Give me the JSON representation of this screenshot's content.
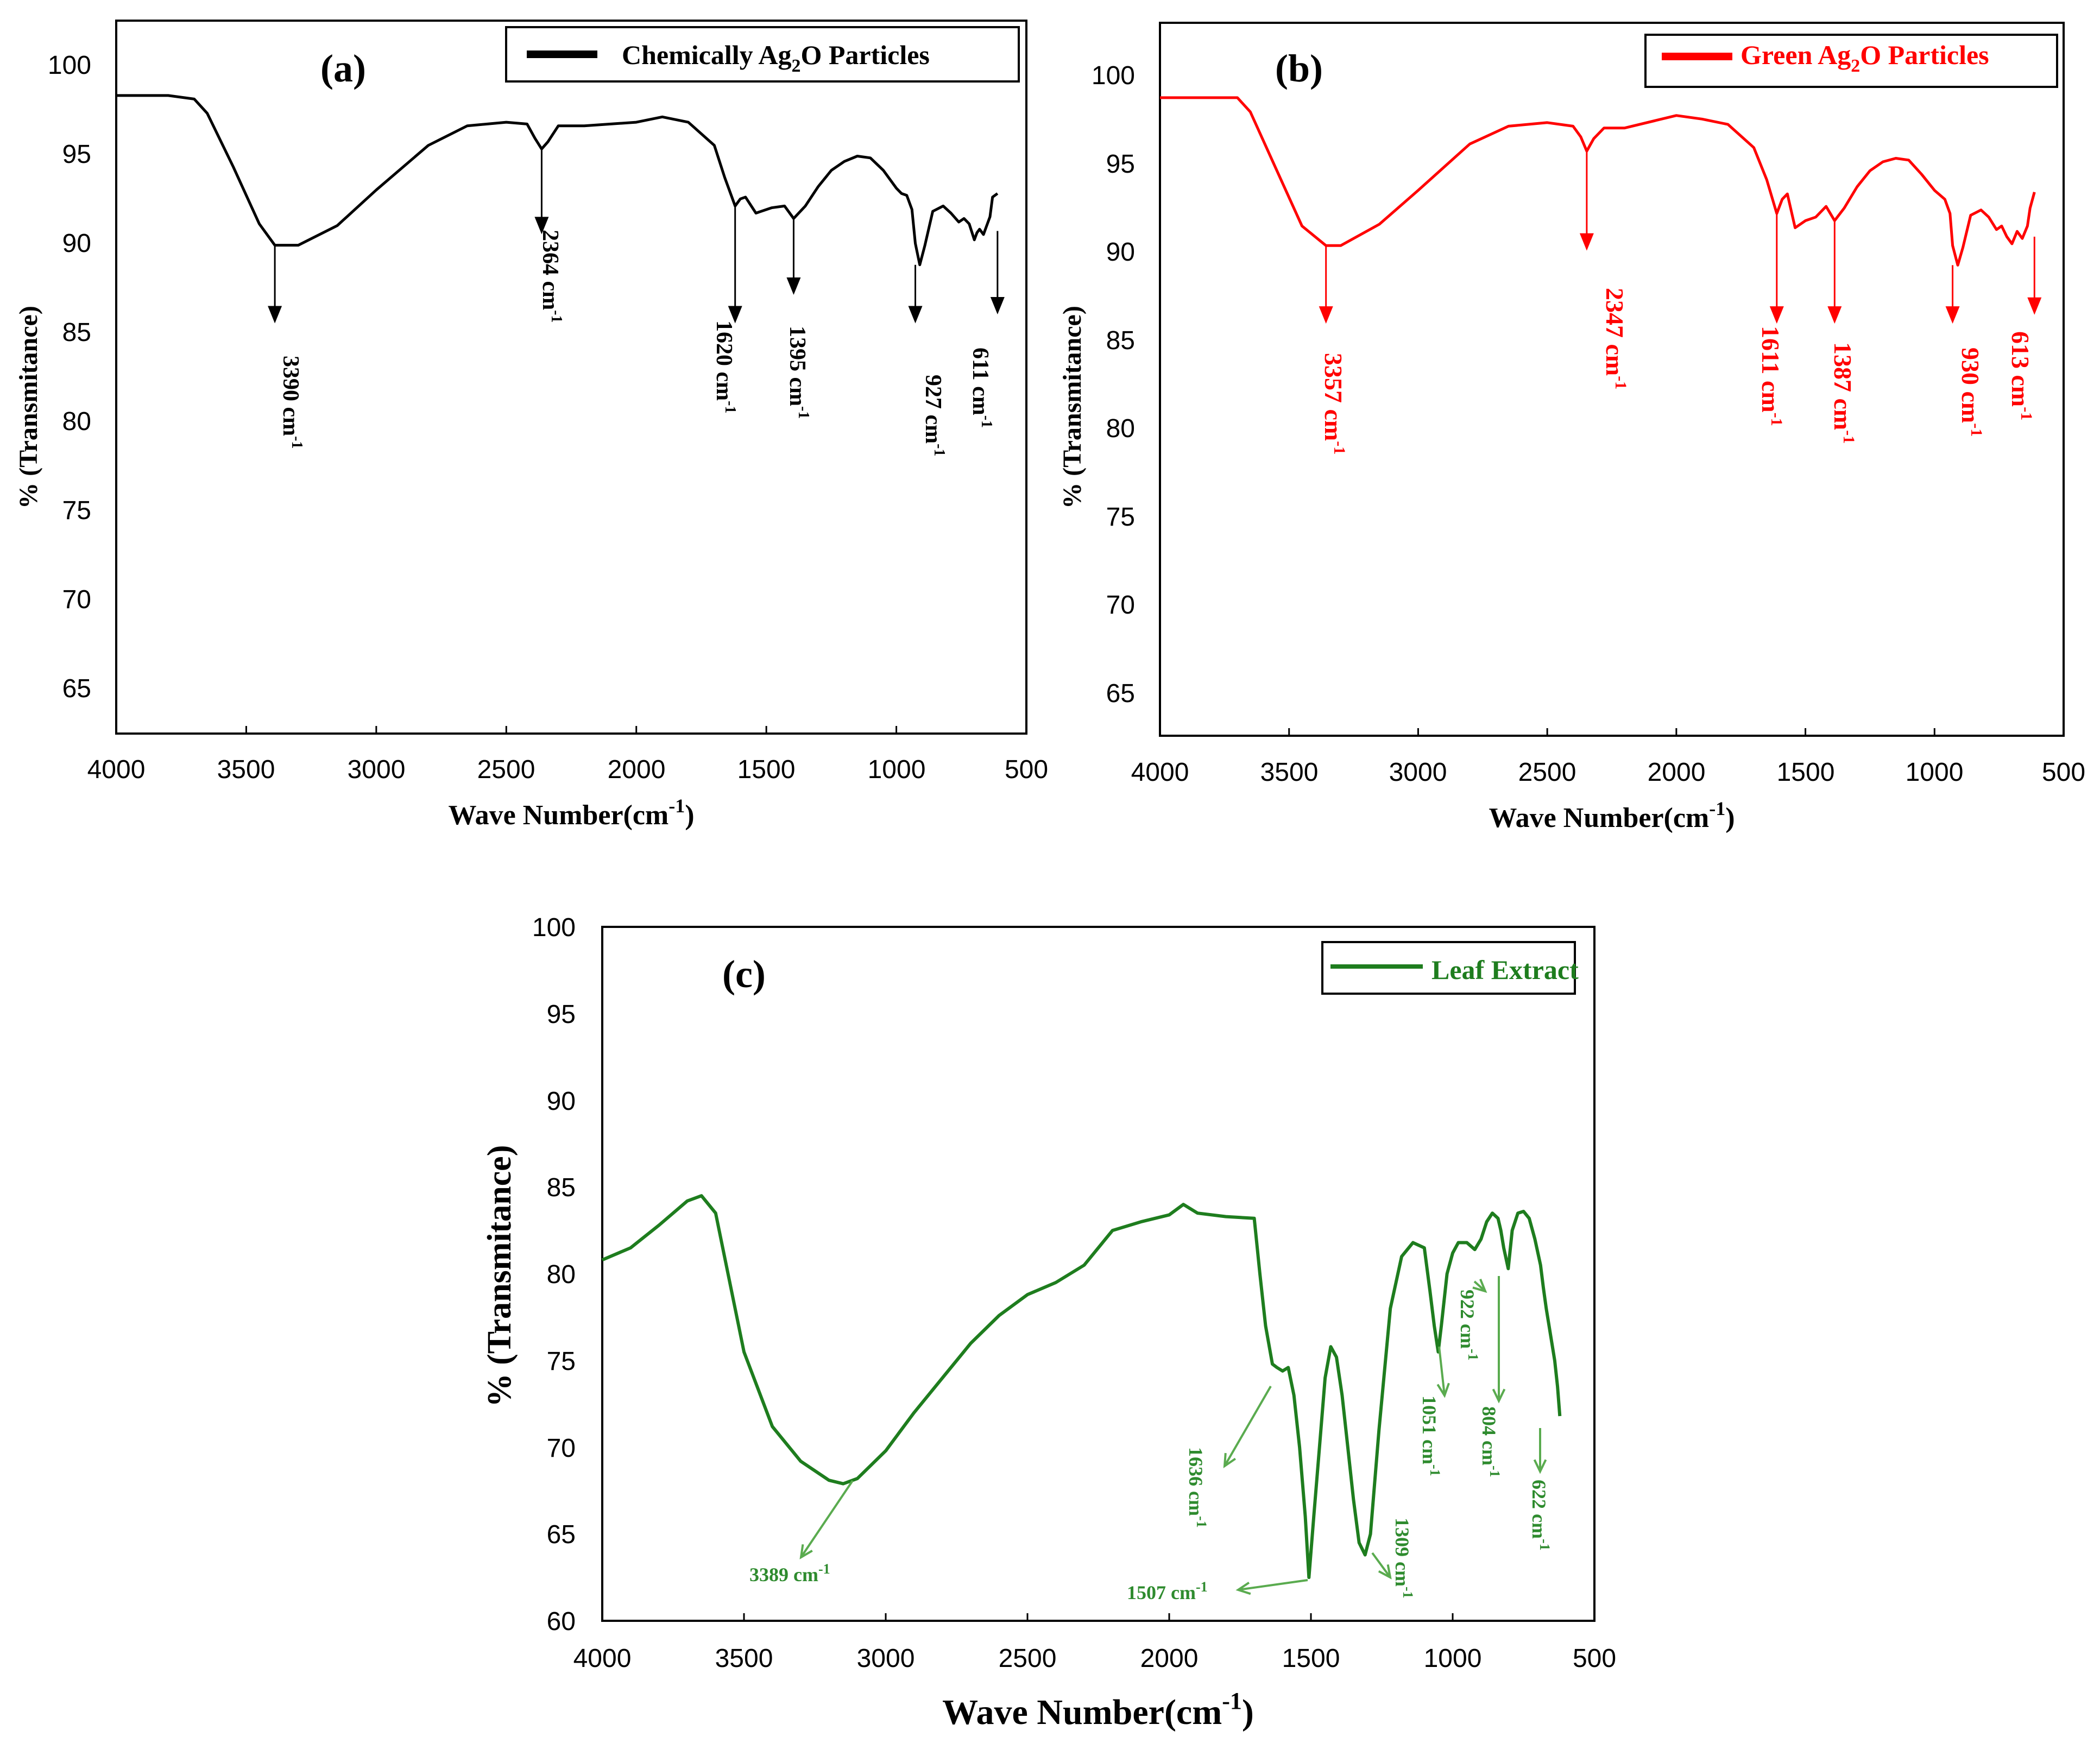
{
  "chart_data": [
    {
      "id": "a",
      "type": "line",
      "panel_label": "(a)",
      "legend": {
        "prefix": "Chemically Ag",
        "sub": "2",
        "suffix": "O Particles"
      },
      "color": "#000000",
      "xlim": [
        4000,
        500
      ],
      "ylim": [
        62,
        102
      ],
      "x_ticks": [
        "4000",
        "3500",
        "3000",
        "2500",
        "2000",
        "1500",
        "1000",
        "500"
      ],
      "y_ticks": [
        "100",
        "95",
        "90",
        "85",
        "80",
        "75",
        "70",
        "65"
      ],
      "xlabel": {
        "main": "Wave Number(cm",
        "sup": "-1",
        "close": ")"
      },
      "ylabel": "% (Transmitance)",
      "series": [
        {
          "name": "Chemically Ag2O Particles",
          "x": [
            4000,
            3800,
            3700,
            3650,
            3550,
            3450,
            3390,
            3300,
            3150,
            3000,
            2800,
            2650,
            2500,
            2420,
            2390,
            2364,
            2340,
            2300,
            2200,
            2000,
            1900,
            1800,
            1700,
            1660,
            1620,
            1600,
            1580,
            1540,
            1480,
            1430,
            1395,
            1350,
            1300,
            1250,
            1200,
            1150,
            1100,
            1050,
            1000,
            980,
            960,
            940,
            927,
            910,
            890,
            860,
            820,
            790,
            760,
            740,
            720,
            700,
            690,
            680,
            665,
            650,
            640,
            630,
            611
          ],
          "y": [
            97.8,
            97.8,
            97.6,
            96.8,
            93.8,
            90.6,
            89.4,
            89.4,
            90.5,
            92.5,
            95,
            96.1,
            96.3,
            96.2,
            95.4,
            94.8,
            95.2,
            96.1,
            96.1,
            96.3,
            96.6,
            96.3,
            95,
            93.2,
            91.6,
            92,
            92.1,
            91.2,
            91.5,
            91.6,
            90.9,
            91.6,
            92.7,
            93.6,
            94.1,
            94.4,
            94.3,
            93.6,
            92.6,
            92.3,
            92.2,
            91.4,
            89.5,
            88.3,
            89.4,
            91.3,
            91.6,
            91.2,
            90.7,
            90.9,
            90.6,
            89.7,
            90.1,
            90.3,
            90,
            90.6,
            91,
            92.1,
            92.3
          ]
        }
      ],
      "annotations": [
        {
          "label": "3390 cm",
          "sup": "-1",
          "x": 3390
        },
        {
          "label": "2364 cm",
          "sup": "-1",
          "x": 2364
        },
        {
          "label": "1620 cm",
          "sup": "-1",
          "x": 1620
        },
        {
          "label": "1395 cm",
          "sup": "-1",
          "x": 1395
        },
        {
          "label": "927 cm",
          "sup": "-1",
          "x": 927
        },
        {
          "label": "611 cm",
          "sup": "-1",
          "x": 611
        }
      ]
    },
    {
      "id": "b",
      "type": "line",
      "panel_label": "(b)",
      "legend": {
        "prefix": "Green Ag",
        "sub": "2",
        "suffix": "O Particles"
      },
      "color": "#ff0000",
      "xlim": [
        4000,
        500
      ],
      "ylim": [
        62,
        102
      ],
      "x_ticks": [
        "4000",
        "3500",
        "3000",
        "2500",
        "2000",
        "1500",
        "1000",
        "500"
      ],
      "y_ticks": [
        "100",
        "95",
        "90",
        "85",
        "80",
        "75",
        "70",
        "65"
      ],
      "xlabel": {
        "main": "Wave Number(cm",
        "sup": "-1",
        "close": ")"
      },
      "ylabel": "% (Transmitance)",
      "series": [
        {
          "name": "Green Ag2O Particles",
          "x": [
            4000,
            3800,
            3700,
            3650,
            3550,
            3450,
            3357,
            3300,
            3150,
            3000,
            2800,
            2650,
            2500,
            2400,
            2370,
            2347,
            2320,
            2280,
            2200,
            2000,
            1900,
            1800,
            1700,
            1650,
            1611,
            1590,
            1570,
            1540,
            1500,
            1460,
            1420,
            1387,
            1350,
            1300,
            1250,
            1200,
            1150,
            1100,
            1050,
            1000,
            960,
            940,
            930,
            910,
            890,
            860,
            820,
            790,
            760,
            740,
            720,
            700,
            680,
            660,
            640,
            630,
            613
          ],
          "y": [
            97.8,
            97.8,
            97.8,
            97,
            93.8,
            90.6,
            89.5,
            89.5,
            90.7,
            92.6,
            95.2,
            96.2,
            96.4,
            96.2,
            95.6,
            94.8,
            95.5,
            96.1,
            96.1,
            96.8,
            96.6,
            96.3,
            95,
            93.2,
            91.3,
            92.1,
            92.4,
            90.5,
            90.9,
            91.1,
            91.7,
            90.9,
            91.6,
            92.8,
            93.7,
            94.2,
            94.4,
            94.3,
            93.5,
            92.6,
            92.1,
            91.3,
            89.5,
            88.4,
            89.4,
            91.2,
            91.5,
            91.1,
            90.4,
            90.6,
            90,
            89.6,
            90.3,
            89.9,
            90.6,
            91.6,
            92.5
          ]
        }
      ],
      "annotations": [
        {
          "label": "3357 cm",
          "sup": "-1",
          "x": 3357
        },
        {
          "label": "2347 cm",
          "sup": "-1",
          "x": 2347
        },
        {
          "label": "1611 cm",
          "sup": "-1",
          "x": 1611
        },
        {
          "label": "1387 cm",
          "sup": "-1",
          "x": 1387
        },
        {
          "label": "930 cm",
          "sup": "-1",
          "x": 930
        },
        {
          "label": "613 cm",
          "sup": "-1",
          "x": 613
        }
      ]
    },
    {
      "id": "c",
      "type": "line",
      "panel_label": "(c)",
      "legend": {
        "prefix": "Leaf Extract",
        "sub": "",
        "suffix": ""
      },
      "color": "#1e7d1e",
      "xlim": [
        4000,
        500
      ],
      "ylim": [
        60,
        100
      ],
      "x_ticks": [
        "4000",
        "3500",
        "3000",
        "2500",
        "2000",
        "1500",
        "1000",
        "500"
      ],
      "y_ticks": [
        "100",
        "95",
        "90",
        "85",
        "80",
        "75",
        "70",
        "65",
        "60"
      ],
      "xlabel": {
        "main": "Wave Number(cm",
        "sup": "-1",
        "close": ")"
      },
      "ylabel": "% (Transmitance)",
      "series": [
        {
          "name": "Leaf Extract",
          "x": [
            4000,
            3900,
            3800,
            3700,
            3650,
            3600,
            3550,
            3500,
            3400,
            3300,
            3200,
            3150,
            3100,
            3000,
            2900,
            2800,
            2700,
            2600,
            2500,
            2400,
            2300,
            2200,
            2100,
            2000,
            1950,
            1900,
            1800,
            1700,
            1680,
            1660,
            1636,
            1620,
            1600,
            1580,
            1560,
            1540,
            1520,
            1507,
            1490,
            1470,
            1450,
            1430,
            1410,
            1390,
            1370,
            1350,
            1330,
            1309,
            1290,
            1260,
            1220,
            1180,
            1140,
            1100,
            1080,
            1065,
            1051,
            1040,
            1020,
            1000,
            980,
            950,
            922,
            900,
            880,
            860,
            840,
            830,
            820,
            804,
            790,
            770,
            750,
            730,
            710,
            690,
            680,
            670,
            660,
            650,
            640,
            630,
            622
          ],
          "y": [
            80.8,
            81.5,
            82.8,
            84.2,
            84.5,
            83.5,
            79.5,
            75.5,
            71.2,
            69.2,
            68.1,
            67.9,
            68.2,
            69.8,
            72,
            74,
            76,
            77.6,
            78.8,
            79.5,
            80.5,
            82.5,
            83,
            83.4,
            84,
            83.5,
            83.3,
            83.2,
            80,
            77,
            74.8,
            74.6,
            74.4,
            74.6,
            73,
            70,
            66,
            62.5,
            66,
            70,
            74,
            75.8,
            75.2,
            73,
            70,
            67,
            64.5,
            63.8,
            65,
            71,
            78,
            81,
            81.8,
            81.5,
            79,
            77,
            75.5,
            77,
            80,
            81.2,
            81.8,
            81.8,
            81.4,
            82,
            83,
            83.5,
            83.2,
            82.5,
            81.5,
            80.3,
            82.5,
            83.5,
            83.6,
            83.2,
            82,
            80.5,
            79.2,
            78,
            77,
            76,
            75,
            73.5,
            71.8
          ]
        }
      ],
      "annotations": [
        {
          "label": "3389 cm",
          "sup": "-1",
          "x": 3389
        },
        {
          "label": "1636  cm",
          "sup": "-1",
          "x": 1636
        },
        {
          "label": "1507  cm",
          "sup": "-1",
          "x": 1507
        },
        {
          "label": "1309  cm",
          "sup": "-1",
          "x": 1309
        },
        {
          "label": "1051  cm",
          "sup": "-1",
          "x": 1051
        },
        {
          "label": "922  cm",
          "sup": "-1",
          "x": 922
        },
        {
          "label": "804  cm",
          "sup": "-1",
          "x": 804
        },
        {
          "label": "622  cm",
          "sup": "-1",
          "x": 622
        }
      ]
    }
  ]
}
